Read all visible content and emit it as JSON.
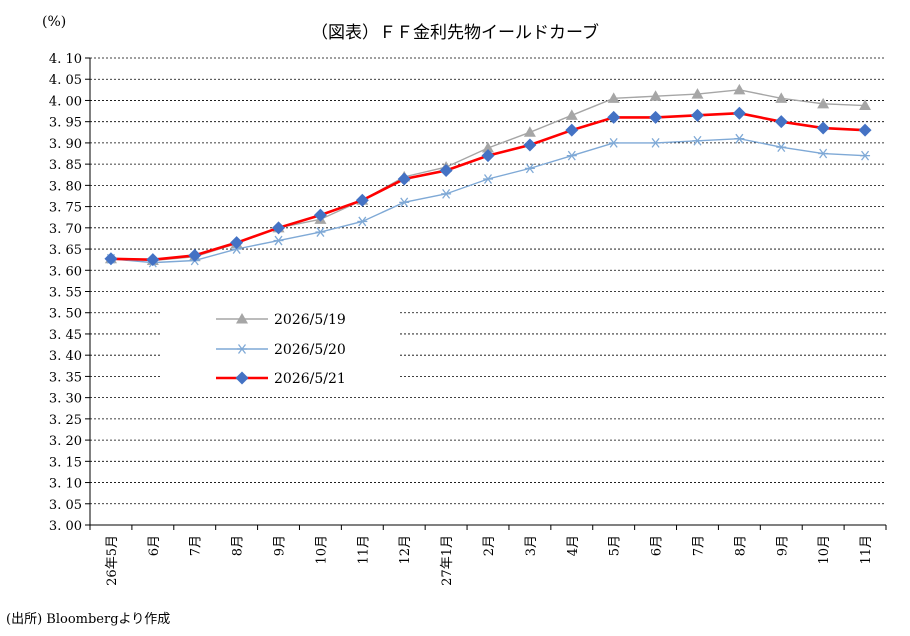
{
  "chart_data": {
    "type": "line",
    "title": "（図表）ＦＦ金利先物イールドカーブ",
    "ylabel": "(%)",
    "xlabel": "",
    "ylim": [
      3.0,
      4.1
    ],
    "ytick_step": 0.05,
    "categories": [
      "26年5月",
      "6月",
      "7月",
      "8月",
      "9月",
      "10月",
      "11月",
      "12月",
      "27年1月",
      "2月",
      "3月",
      "4月",
      "5月",
      "6月",
      "7月",
      "8月",
      "9月",
      "10月",
      "11月"
    ],
    "grid": "horizontal-dotted",
    "legend_position": "center-left",
    "series": [
      {
        "name": "2026/5/19",
        "color": "#a6a6a6",
        "marker": "triangle",
        "values": [
          3.627,
          3.623,
          3.632,
          3.663,
          3.7,
          3.72,
          3.765,
          3.82,
          3.843,
          3.888,
          3.925,
          3.965,
          4.005,
          4.01,
          4.015,
          4.025,
          4.005,
          3.992,
          3.988
        ]
      },
      {
        "name": "2026/5/20",
        "color": "#7fa9d6",
        "marker": "asterisk",
        "values": [
          3.627,
          3.618,
          3.623,
          3.65,
          3.67,
          3.69,
          3.715,
          3.76,
          3.78,
          3.815,
          3.84,
          3.87,
          3.9,
          3.9,
          3.905,
          3.91,
          3.89,
          3.875,
          3.87
        ]
      },
      {
        "name": "2026/5/21",
        "color": "#ff0000",
        "marker_color": "#4472c4",
        "marker": "diamond",
        "values": [
          3.627,
          3.625,
          3.635,
          3.665,
          3.7,
          3.73,
          3.765,
          3.815,
          3.835,
          3.87,
          3.895,
          3.93,
          3.96,
          3.96,
          3.965,
          3.97,
          3.95,
          3.935,
          3.93
        ]
      }
    ]
  },
  "source": "(出所) Bloombergより作成"
}
